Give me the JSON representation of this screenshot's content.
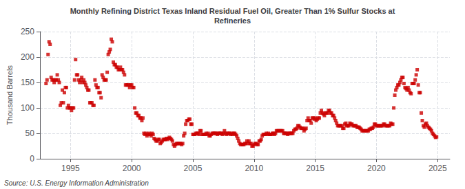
{
  "chart_data": {
    "type": "scatter",
    "title": "Monthly Refining District Texas Inland Residual Fuel Oil, Greater Than 1% Sulfur Stocks at\nRefineries",
    "ylabel": "Thousand Barrels",
    "annotations": [
      "Source: U.S. Energy Information Administration"
    ],
    "color": "#cc0000",
    "marker": "square",
    "grid": true,
    "xlim": [
      1992.5,
      2026.0
    ],
    "ylim": [
      0,
      250
    ],
    "xticks": [
      1995,
      2000,
      2005,
      2010,
      2015,
      2020,
      2025
    ],
    "yticks": [
      0,
      50,
      100,
      150,
      200,
      250
    ],
    "x": [
      1993.0,
      1993.083,
      1993.167,
      1993.25,
      1993.333,
      1993.417,
      1993.5,
      1993.583,
      1993.667,
      1993.75,
      1993.833,
      1993.917,
      1994.0,
      1994.083,
      1994.167,
      1994.25,
      1994.333,
      1994.417,
      1994.5,
      1994.583,
      1994.667,
      1994.75,
      1994.833,
      1994.917,
      1995.0,
      1995.083,
      1995.167,
      1995.25,
      1995.333,
      1995.417,
      1995.5,
      1995.583,
      1995.667,
      1995.75,
      1995.833,
      1995.917,
      1996.0,
      1996.083,
      1996.167,
      1996.25,
      1996.333,
      1996.417,
      1996.5,
      1996.583,
      1996.667,
      1996.75,
      1996.833,
      1996.917,
      1997.0,
      1997.083,
      1997.167,
      1997.25,
      1997.333,
      1997.417,
      1997.5,
      1997.583,
      1997.667,
      1997.75,
      1997.833,
      1997.917,
      1998.0,
      1998.083,
      1998.167,
      1998.25,
      1998.333,
      1998.417,
      1998.5,
      1998.583,
      1998.667,
      1998.75,
      1998.833,
      1998.917,
      1999.0,
      1999.083,
      1999.167,
      1999.25,
      1999.333,
      1999.417,
      1999.5,
      1999.583,
      1999.667,
      1999.75,
      1999.833,
      1999.917,
      2000.0,
      2000.083,
      2000.167,
      2000.25,
      2000.333,
      2000.417,
      2000.5,
      2000.583,
      2000.667,
      2000.75,
      2000.833,
      2000.917,
      2001.0,
      2001.083,
      2001.167,
      2001.25,
      2001.333,
      2001.417,
      2001.5,
      2001.583,
      2001.667,
      2001.75,
      2001.833,
      2001.917,
      2002.0,
      2002.083,
      2002.167,
      2002.25,
      2002.333,
      2002.417,
      2002.5,
      2002.583,
      2002.667,
      2002.75,
      2002.833,
      2002.917,
      2003.0,
      2003.083,
      2003.167,
      2003.25,
      2003.333,
      2003.417,
      2003.5,
      2003.583,
      2003.667,
      2003.75,
      2003.833,
      2003.917,
      2004.0,
      2004.083,
      2004.167,
      2004.25,
      2004.333,
      2004.417,
      2004.5,
      2004.583,
      2004.667,
      2004.75,
      2004.833,
      2004.917,
      2005.0,
      2005.083,
      2005.167,
      2005.25,
      2005.333,
      2005.417,
      2005.5,
      2005.583,
      2005.667,
      2005.75,
      2005.833,
      2005.917,
      2006.0,
      2006.083,
      2006.167,
      2006.25,
      2006.333,
      2006.417,
      2006.5,
      2006.583,
      2006.667,
      2006.75,
      2006.833,
      2006.917,
      2007.0,
      2007.083,
      2007.167,
      2007.25,
      2007.333,
      2007.417,
      2007.5,
      2007.583,
      2007.667,
      2007.75,
      2007.833,
      2007.917,
      2008.0,
      2008.083,
      2008.167,
      2008.25,
      2008.333,
      2008.417,
      2008.5,
      2008.583,
      2008.667,
      2008.75,
      2008.833,
      2008.917,
      2009.0,
      2009.083,
      2009.167,
      2009.25,
      2009.333,
      2009.417,
      2009.5,
      2009.583,
      2009.667,
      2009.75,
      2009.833,
      2009.917,
      2010.0,
      2010.083,
      2010.167,
      2010.25,
      2010.333,
      2010.417,
      2010.5,
      2010.583,
      2010.667,
      2010.75,
      2010.833,
      2010.917,
      2011.0,
      2011.083,
      2011.167,
      2011.25,
      2011.333,
      2011.417,
      2011.5,
      2011.583,
      2011.667,
      2011.75,
      2011.833,
      2011.917,
      2012.0,
      2012.083,
      2012.167,
      2012.25,
      2012.333,
      2012.417,
      2012.5,
      2012.583,
      2012.667,
      2012.75,
      2012.833,
      2012.917,
      2013.0,
      2013.083,
      2013.167,
      2013.25,
      2013.333,
      2013.417,
      2013.5,
      2013.583,
      2013.667,
      2013.75,
      2013.833,
      2013.917,
      2014.0,
      2014.083,
      2014.167,
      2014.25,
      2014.333,
      2014.417,
      2014.5,
      2014.583,
      2014.667,
      2014.75,
      2014.833,
      2014.917,
      2015.0,
      2015.083,
      2015.167,
      2015.25,
      2015.333,
      2015.417,
      2015.5,
      2015.583,
      2015.667,
      2015.75,
      2015.833,
      2015.917,
      2016.0,
      2016.083,
      2016.167,
      2016.25,
      2016.333,
      2016.417,
      2016.5,
      2016.583,
      2016.667,
      2016.75,
      2016.833,
      2016.917,
      2017.0,
      2017.083,
      2017.167,
      2017.25,
      2017.333,
      2017.417,
      2017.5,
      2017.583,
      2017.667,
      2017.75,
      2017.833,
      2017.917,
      2018.0,
      2018.083,
      2018.167,
      2018.25,
      2018.333,
      2018.417,
      2018.5,
      2018.583,
      2018.667,
      2018.75,
      2018.833,
      2018.917,
      2019.0,
      2019.083,
      2019.167,
      2019.25,
      2019.333,
      2019.417,
      2019.5,
      2019.583,
      2019.667,
      2019.75,
      2019.833,
      2019.917,
      2020.0,
      2020.083,
      2020.167,
      2020.25,
      2020.333,
      2020.417,
      2020.5,
      2020.583,
      2020.667,
      2020.75,
      2020.833,
      2020.917,
      2021.0,
      2021.083,
      2021.167,
      2021.25,
      2021.333,
      2021.417,
      2021.5,
      2021.583,
      2021.667,
      2021.75,
      2021.833,
      2021.917,
      2022.0,
      2022.083,
      2022.167,
      2022.25,
      2022.333,
      2022.417,
      2022.5,
      2022.583,
      2022.667,
      2022.75,
      2022.833,
      2022.917,
      2023.0,
      2023.083,
      2023.167,
      2023.25,
      2023.333,
      2023.417,
      2023.5,
      2023.583,
      2023.667,
      2023.75,
      2023.833,
      2023.917,
      2024.0,
      2024.083,
      2024.167,
      2024.25,
      2024.333,
      2024.417,
      2024.5,
      2024.583,
      2024.667,
      2024.75,
      2024.833,
      2024.917
    ],
    "values": [
      148,
      155,
      205,
      230,
      225,
      160,
      155,
      155,
      150,
      155,
      155,
      165,
      155,
      150,
      105,
      110,
      135,
      110,
      130,
      140,
      140,
      100,
      105,
      100,
      100,
      95,
      100,
      100,
      155,
      195,
      165,
      165,
      155,
      150,
      155,
      160,
      150,
      155,
      150,
      145,
      140,
      135,
      135,
      110,
      110,
      110,
      105,
      105,
      155,
      145,
      140,
      140,
      130,
      130,
      120,
      165,
      160,
      155,
      155,
      155,
      170,
      205,
      210,
      215,
      235,
      230,
      190,
      185,
      185,
      180,
      180,
      175,
      175,
      180,
      175,
      175,
      170,
      165,
      145,
      145,
      145,
      145,
      140,
      145,
      145,
      140,
      140,
      100,
      90,
      90,
      85,
      85,
      80,
      80,
      75,
      80,
      50,
      48,
      50,
      45,
      48,
      50,
      48,
      45,
      50,
      48,
      40,
      38,
      35,
      35,
      38,
      38,
      30,
      32,
      35,
      38,
      38,
      38,
      40,
      38,
      40,
      42,
      40,
      38,
      35,
      28,
      25,
      28,
      30,
      30,
      30,
      30,
      30,
      28,
      30,
      45,
      50,
      68,
      75,
      75,
      78,
      78,
      68,
      68,
      48,
      48,
      48,
      50,
      50,
      50,
      48,
      55,
      55,
      48,
      48,
      48,
      48,
      50,
      48,
      50,
      45,
      45,
      48,
      50,
      50,
      50,
      50,
      50,
      48,
      50,
      50,
      50,
      50,
      48,
      50,
      55,
      50,
      48,
      50,
      50,
      50,
      48,
      50,
      48,
      50,
      50,
      48,
      45,
      40,
      35,
      30,
      28,
      28,
      28,
      28,
      30,
      30,
      35,
      30,
      35,
      30,
      30,
      25,
      25,
      28,
      30,
      30,
      28,
      28,
      35,
      35,
      38,
      45,
      48,
      48,
      48,
      50,
      48,
      50,
      48,
      48,
      48,
      50,
      50,
      48,
      50,
      55,
      55,
      55,
      55,
      55,
      55,
      55,
      50,
      50,
      50,
      50,
      48,
      50,
      50,
      50,
      50,
      50,
      55,
      58,
      58,
      60,
      65,
      65,
      62,
      60,
      60,
      60,
      55,
      58,
      60,
      75,
      80,
      75,
      75,
      70,
      80,
      80,
      78,
      80,
      75,
      78,
      80,
      80,
      90,
      95,
      90,
      88,
      85,
      90,
      90,
      90,
      95,
      95,
      90,
      90,
      85,
      85,
      80,
      75,
      70,
      65,
      65,
      65,
      65,
      65,
      60,
      60,
      68,
      70,
      65,
      65,
      65,
      70,
      68,
      68,
      65,
      65,
      65,
      65,
      62,
      62,
      62,
      60,
      58,
      55,
      55,
      55,
      55,
      55,
      55,
      55,
      58,
      58,
      60,
      60,
      62,
      68,
      68,
      65,
      65,
      65,
      65,
      65,
      65,
      65,
      68,
      68,
      65,
      65,
      65,
      65,
      65,
      70,
      68,
      68,
      100,
      125,
      135,
      140,
      145,
      145,
      150,
      155,
      160,
      160,
      148,
      140,
      138,
      135,
      140,
      135,
      130,
      128,
      148,
      148,
      148,
      155,
      165,
      175,
      145,
      130,
      130,
      90,
      75,
      65,
      62,
      68,
      70,
      65,
      62,
      60,
      58,
      55,
      50,
      48,
      45,
      42,
      43
    ]
  }
}
